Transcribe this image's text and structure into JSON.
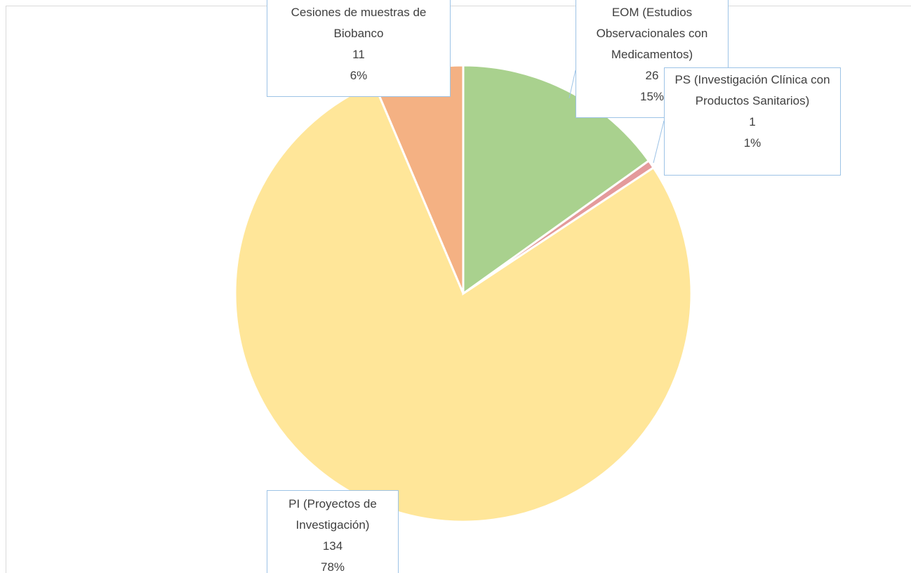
{
  "chart_data": {
    "type": "pie",
    "categories": [
      "EOM (Estudios Observacionales con Medicamentos)",
      "PS (Investigación Clínica con Productos Sanitarios)",
      "PI (Proyectos de Investigación)",
      "Cesiones de muestras de Biobanco"
    ],
    "values": [
      26,
      1,
      134,
      11
    ],
    "percentages": [
      {
        "value": 15,
        "label": "15%"
      },
      {
        "value": 1,
        "label": "1%"
      },
      {
        "value": 78,
        "label": "78%"
      },
      {
        "value": 6,
        "label": "6%"
      }
    ],
    "colors": [
      "#a9d18e",
      "#e49a9b",
      "#ffe699",
      "#f4b183"
    ]
  }
}
